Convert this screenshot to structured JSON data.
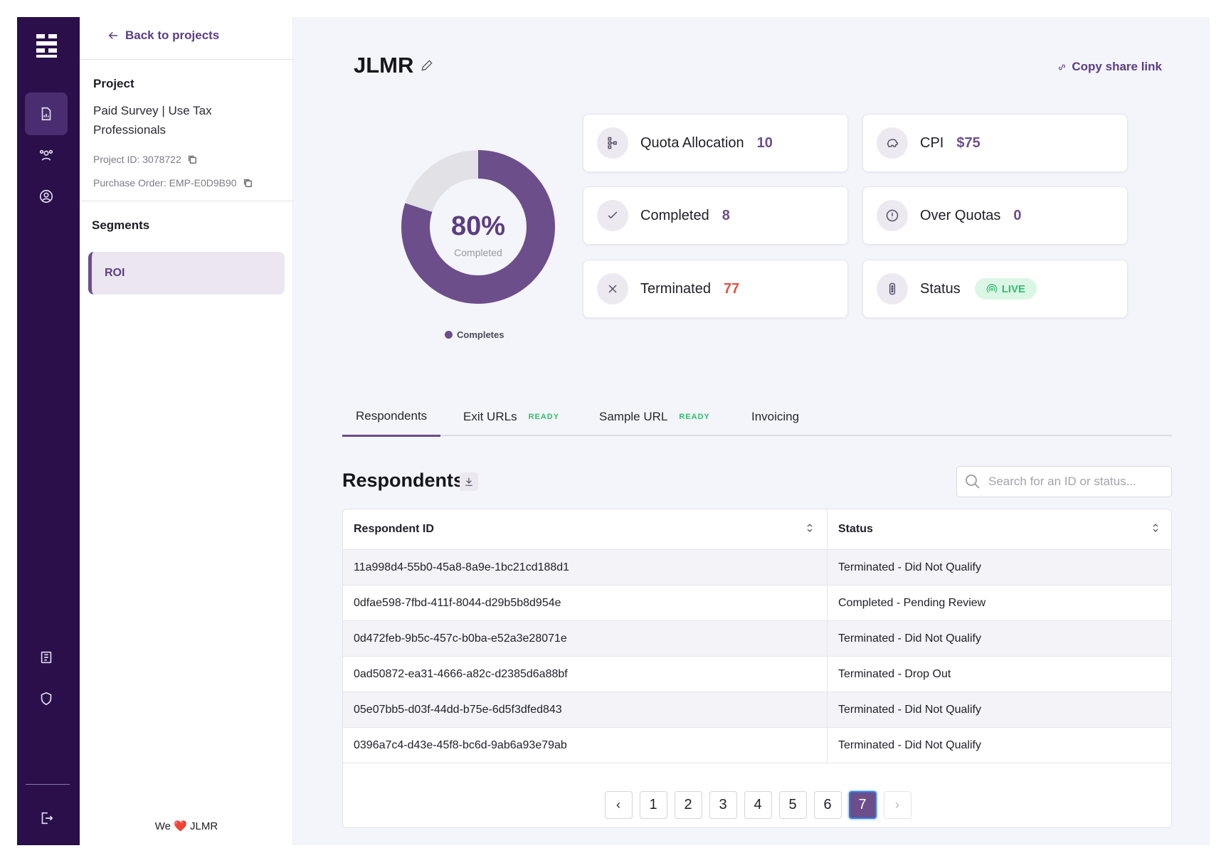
{
  "sidebar": {
    "back_label": "Back to projects",
    "project_heading": "Project",
    "project_name": "Paid Survey | Use Tax Professionals",
    "project_id": "Project ID: 3078722",
    "purchase_order": "Purchase Order: EMP-E0D9B90",
    "segments_heading": "Segments",
    "segments": [
      {
        "label": "ROI"
      }
    ],
    "footer_prefix": "We",
    "footer_brand": "JLMR"
  },
  "header": {
    "title": "JLMR",
    "share_label": "Copy share link"
  },
  "donut": {
    "percent_label": "80%",
    "sub_label": "Completed",
    "fraction": 0.8,
    "legend": "Completes",
    "fill_color": "#6b4e8a",
    "track_color": "#e1e1e6"
  },
  "stats": {
    "quota_allocation": {
      "label": "Quota Allocation",
      "value": "10"
    },
    "cpi": {
      "label": "CPI",
      "value": "$75"
    },
    "completed": {
      "label": "Completed",
      "value": "8"
    },
    "over_quotas": {
      "label": "Over Quotas",
      "value": "0"
    },
    "terminated": {
      "label": "Terminated",
      "value": "77"
    },
    "status": {
      "label": "Status",
      "value": "LIVE"
    }
  },
  "tabs": [
    {
      "label": "Respondents"
    },
    {
      "label": "Exit URLs",
      "badge": "READY"
    },
    {
      "label": "Sample URL",
      "badge": "READY"
    },
    {
      "label": "Invoicing"
    }
  ],
  "respondents": {
    "heading": "Respondents",
    "search_placeholder": "Search for an ID or status...",
    "columns": [
      "Respondent ID",
      "Status"
    ],
    "rows": [
      {
        "id": "11a998d4-55b0-45a8-8a9e-1bc21cd188d1",
        "status": "Terminated - Did Not Qualify"
      },
      {
        "id": "0dfae598-7fbd-411f-8044-d29b5b8d954e",
        "status": "Completed - Pending Review"
      },
      {
        "id": "0d472feb-9b5c-457c-b0ba-e52a3e28071e",
        "status": "Terminated - Did Not Qualify"
      },
      {
        "id": "0ad50872-ea31-4666-a82c-d2385d6a88bf",
        "status": "Terminated - Drop Out"
      },
      {
        "id": "05e07bb5-d03f-44dd-b75e-6d5f3dfed843",
        "status": "Terminated - Did Not Qualify"
      },
      {
        "id": "0396a7c4-d43e-45f8-bc6d-9ab6a93e79ab",
        "status": "Terminated - Did Not Qualify"
      }
    ]
  },
  "pagination": {
    "prev": "‹",
    "next": "›",
    "pages": [
      "1",
      "2",
      "3",
      "4",
      "5",
      "6",
      "7"
    ],
    "current": "7"
  }
}
